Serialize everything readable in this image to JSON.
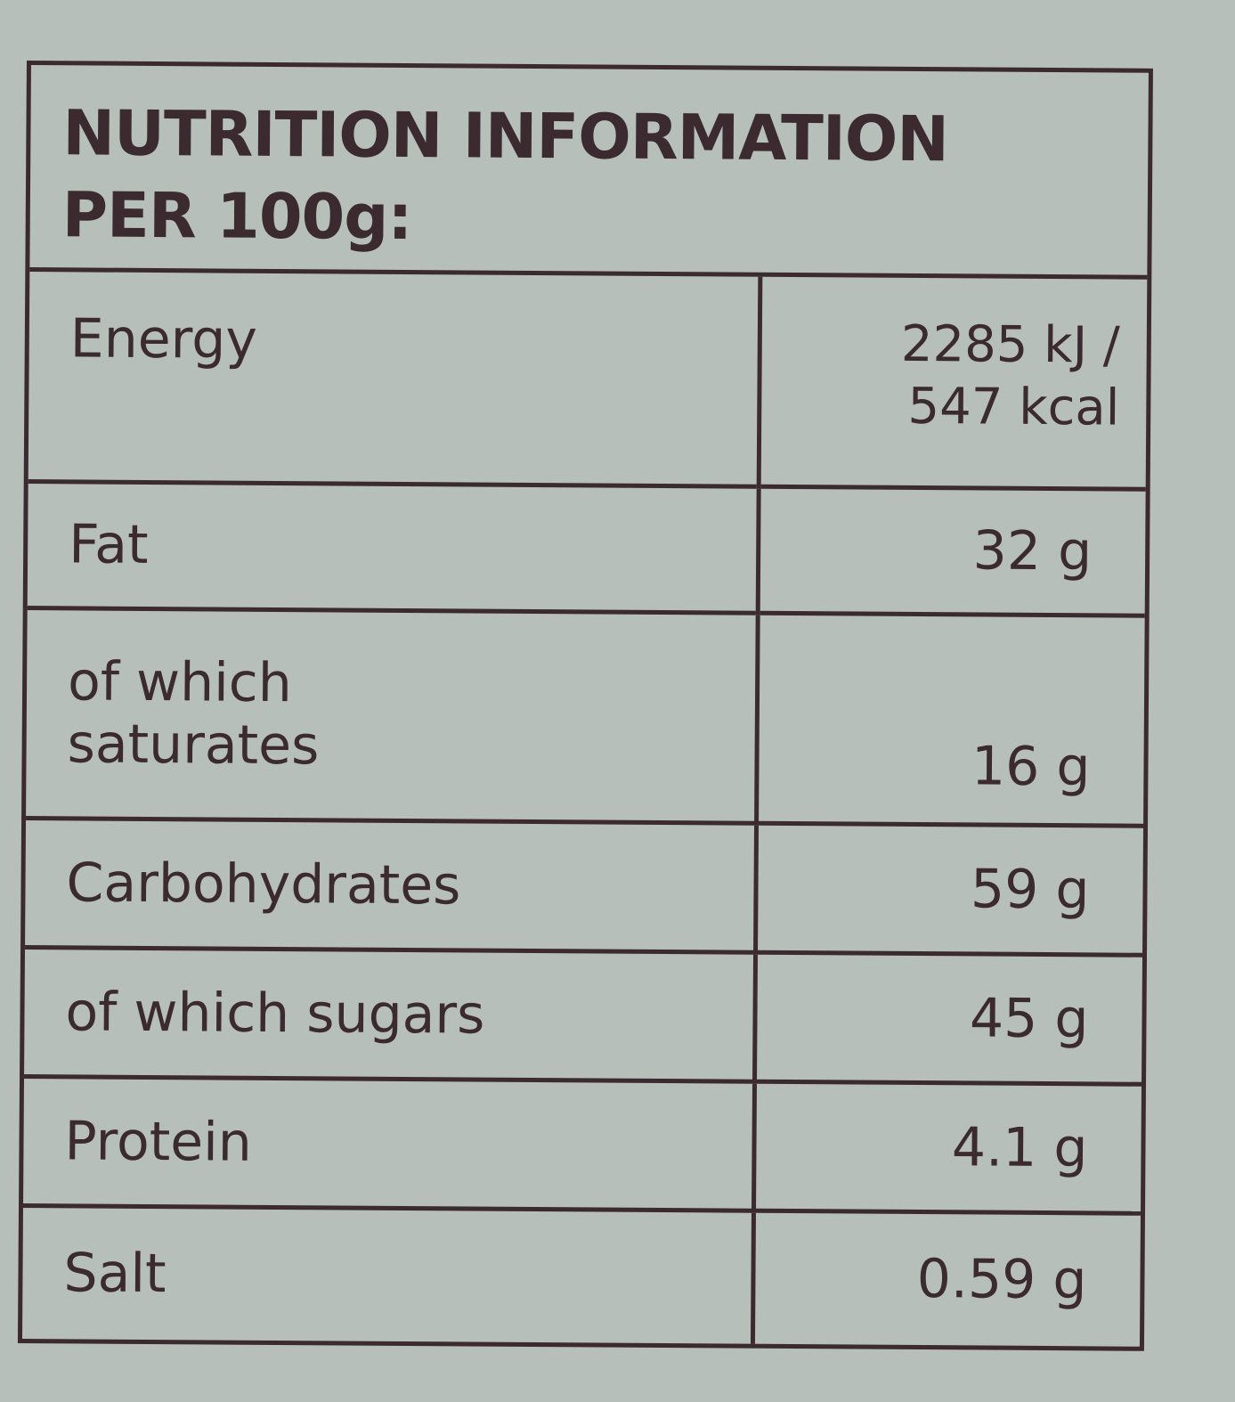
{
  "header": {
    "title": "NUTRITION INFORMATION PER 100g:"
  },
  "table": {
    "rows": [
      [
        "Energy",
        "2285 kJ / 547 kcal"
      ],
      [
        "Fat",
        "32 g"
      ],
      [
        "of which saturates",
        "16 g"
      ],
      [
        "Carbohydrates",
        "59 g"
      ],
      [
        "of which sugars",
        "45 g"
      ],
      [
        "Protein",
        "4.1 g"
      ],
      [
        "Salt",
        "0.59 g"
      ]
    ]
  }
}
